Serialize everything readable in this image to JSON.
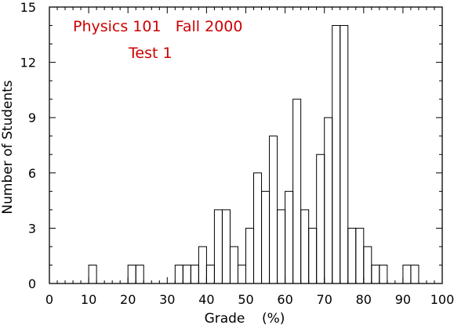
{
  "chart_data": {
    "type": "bar",
    "title_lines": [
      "Physics 101   Fall 2000",
      "Test 1"
    ],
    "annotation_color": "#cc0000",
    "xlabel": "Grade    (%)",
    "ylabel": "Number of Students",
    "xlim": [
      0,
      100
    ],
    "ylim": [
      0,
      15
    ],
    "x_ticks": [
      0,
      10,
      20,
      30,
      40,
      50,
      60,
      70,
      80,
      90,
      100
    ],
    "y_ticks": [
      0,
      3,
      6,
      9,
      12,
      15
    ],
    "bin_width": 2,
    "bins": [
      {
        "start": 10,
        "count": 1
      },
      {
        "start": 20,
        "count": 1
      },
      {
        "start": 22,
        "count": 1
      },
      {
        "start": 32,
        "count": 1
      },
      {
        "start": 34,
        "count": 1
      },
      {
        "start": 36,
        "count": 1
      },
      {
        "start": 38,
        "count": 2
      },
      {
        "start": 40,
        "count": 1
      },
      {
        "start": 42,
        "count": 4
      },
      {
        "start": 44,
        "count": 4
      },
      {
        "start": 46,
        "count": 2
      },
      {
        "start": 48,
        "count": 1
      },
      {
        "start": 50,
        "count": 3
      },
      {
        "start": 52,
        "count": 6
      },
      {
        "start": 54,
        "count": 5
      },
      {
        "start": 56,
        "count": 8
      },
      {
        "start": 58,
        "count": 4
      },
      {
        "start": 60,
        "count": 5
      },
      {
        "start": 62,
        "count": 10
      },
      {
        "start": 64,
        "count": 4
      },
      {
        "start": 66,
        "count": 3
      },
      {
        "start": 68,
        "count": 7
      },
      {
        "start": 70,
        "count": 9
      },
      {
        "start": 72,
        "count": 14
      },
      {
        "start": 74,
        "count": 14
      },
      {
        "start": 76,
        "count": 3
      },
      {
        "start": 78,
        "count": 3
      },
      {
        "start": 80,
        "count": 2
      },
      {
        "start": 82,
        "count": 1
      },
      {
        "start": 84,
        "count": 1
      },
      {
        "start": 90,
        "count": 1
      },
      {
        "start": 92,
        "count": 1
      }
    ]
  }
}
